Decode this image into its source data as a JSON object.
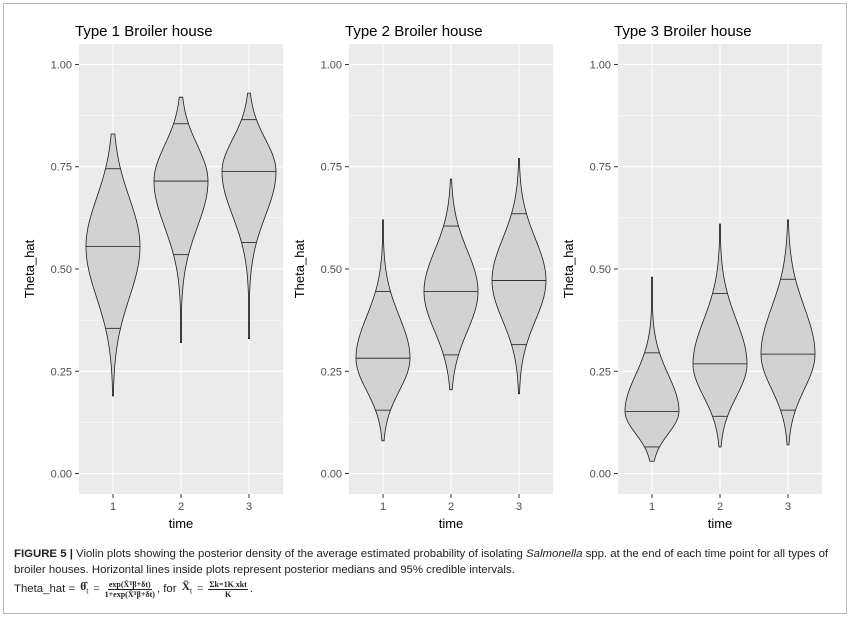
{
  "chart_data": [
    {
      "type": "violin",
      "title": "Type 1 Broiler house",
      "xlabel": "time",
      "ylabel": "Theta_hat",
      "categories": [
        "1",
        "2",
        "3"
      ],
      "yticks": [
        "0.00",
        "0.25",
        "0.50",
        "0.75",
        "1.00"
      ],
      "ylim": [
        -0.05,
        1.05
      ],
      "violins": [
        {
          "x": "1",
          "min": 0.19,
          "max": 0.83,
          "lower_ci": 0.355,
          "median": 0.555,
          "upper_ci": 0.745
        },
        {
          "x": "2",
          "min": 0.32,
          "max": 0.92,
          "lower_ci": 0.535,
          "median": 0.715,
          "upper_ci": 0.855
        },
        {
          "x": "3",
          "min": 0.33,
          "max": 0.93,
          "lower_ci": 0.565,
          "median": 0.738,
          "upper_ci": 0.865
        }
      ]
    },
    {
      "type": "violin",
      "title": "Type 2 Broiler house",
      "xlabel": "time",
      "ylabel": "Theta_hat",
      "categories": [
        "1",
        "2",
        "3"
      ],
      "yticks": [
        "0.00",
        "0.25",
        "0.50",
        "0.75",
        "1.00"
      ],
      "ylim": [
        -0.05,
        1.05
      ],
      "violins": [
        {
          "x": "1",
          "min": 0.08,
          "max": 0.62,
          "lower_ci": 0.155,
          "median": 0.282,
          "upper_ci": 0.445
        },
        {
          "x": "2",
          "min": 0.205,
          "max": 0.72,
          "lower_ci": 0.29,
          "median": 0.445,
          "upper_ci": 0.605
        },
        {
          "x": "3",
          "min": 0.195,
          "max": 0.77,
          "lower_ci": 0.315,
          "median": 0.472,
          "upper_ci": 0.635
        }
      ]
    },
    {
      "type": "violin",
      "title": "Type 3 Broiler house",
      "xlabel": "time",
      "ylabel": "Theta_hat",
      "categories": [
        "1",
        "2",
        "3"
      ],
      "yticks": [
        "0.00",
        "0.25",
        "0.50",
        "0.75",
        "1.00"
      ],
      "ylim": [
        -0.05,
        1.05
      ],
      "violins": [
        {
          "x": "1",
          "min": 0.03,
          "max": 0.48,
          "lower_ci": 0.065,
          "median": 0.152,
          "upper_ci": 0.295
        },
        {
          "x": "2",
          "min": 0.065,
          "max": 0.61,
          "lower_ci": 0.14,
          "median": 0.268,
          "upper_ci": 0.44
        },
        {
          "x": "3",
          "min": 0.07,
          "max": 0.62,
          "lower_ci": 0.155,
          "median": 0.292,
          "upper_ci": 0.475
        }
      ]
    }
  ],
  "caption": {
    "label": "FIGURE 5 |",
    "text_a": " Violin plots showing the posterior density of the average estimated probability of isolating ",
    "italic": "Salmonella",
    "text_b": " spp. at the end of each time point for all types of broiler houses. Horizontal lines inside plots represent posterior medians and 95% credible intervals.",
    "formula_lead": "Theta_hat = ",
    "theta": "θ̂",
    "theta_sub": "t",
    "eq": " = ",
    "num": "exp(X̄ᵀβ+δt)",
    "den": "1+exp(X̄ᵀβ+δt)",
    "for_text": ", for ",
    "xbar": "X̄",
    "xbar_sub": "t",
    "eq2": " = ",
    "num2": "Σk=1K xkt",
    "den2": "K",
    "end": "."
  },
  "colors": {
    "panel_bg": "#ebebeb",
    "grid_major": "#ffffff",
    "violin_fill": "#d2d2d2",
    "violin_stroke": "#1a1a1a"
  }
}
